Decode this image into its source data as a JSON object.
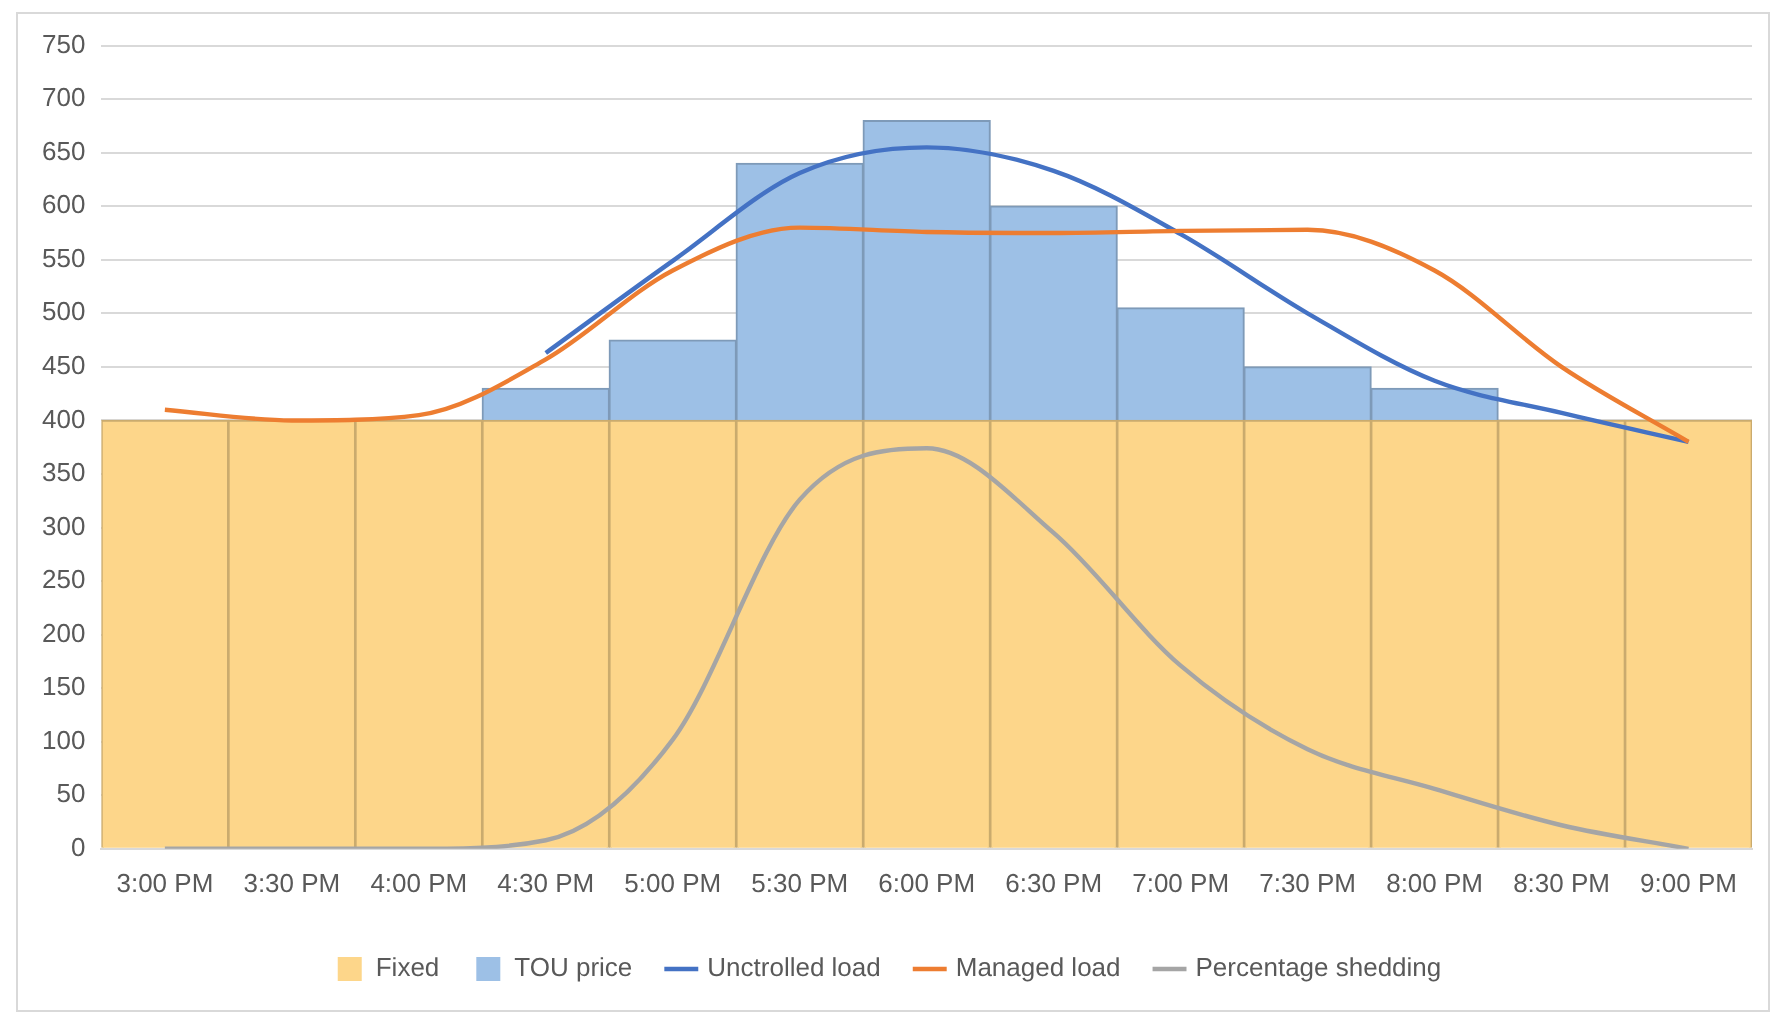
{
  "chart_data": {
    "type": "bar",
    "stacked": true,
    "categories": [
      "3:00 PM",
      "3:30 PM",
      "4:00 PM",
      "4:30 PM",
      "5:00 PM",
      "5:30 PM",
      "6:00 PM",
      "6:30 PM",
      "7:00 PM",
      "7:30 PM",
      "8:00 PM",
      "8:30 PM",
      "9:00 PM"
    ],
    "series": [
      {
        "name": "Fixed",
        "color": "#fdd68a",
        "values": [
          400,
          400,
          400,
          400,
          400,
          400,
          400,
          400,
          400,
          400,
          400,
          400,
          400
        ]
      },
      {
        "name": "TOU price",
        "color": "#9dc0e6",
        "values": [
          0,
          0,
          0,
          30,
          75,
          240,
          280,
          200,
          105,
          50,
          30,
          0,
          0
        ]
      },
      {
        "name": "Unctrolled load",
        "type": "line",
        "color": "#4472c4",
        "values": [
          null,
          null,
          null,
          463,
          549,
          631,
          655,
          633,
          574,
          500,
          437,
          407,
          380
        ]
      },
      {
        "name": "Managed load",
        "type": "line",
        "color": "#ed7d31",
        "values": [
          410,
          400,
          405,
          457,
          540,
          580,
          576,
          575,
          577,
          578,
          540,
          450,
          380
        ]
      },
      {
        "name": "Percentage shedding",
        "type": "line",
        "color": "#a5a5a5",
        "values": [
          0,
          0,
          0,
          8,
          102,
          326,
          374,
          295,
          171,
          93,
          56,
          22,
          0
        ]
      }
    ],
    "ylim": [
      0,
      750
    ],
    "yticks": [
      0,
      50,
      100,
      150,
      200,
      250,
      300,
      350,
      400,
      450,
      500,
      550,
      600,
      650,
      700,
      750
    ],
    "grid": "y",
    "legend": "bottom",
    "marker": "none"
  }
}
